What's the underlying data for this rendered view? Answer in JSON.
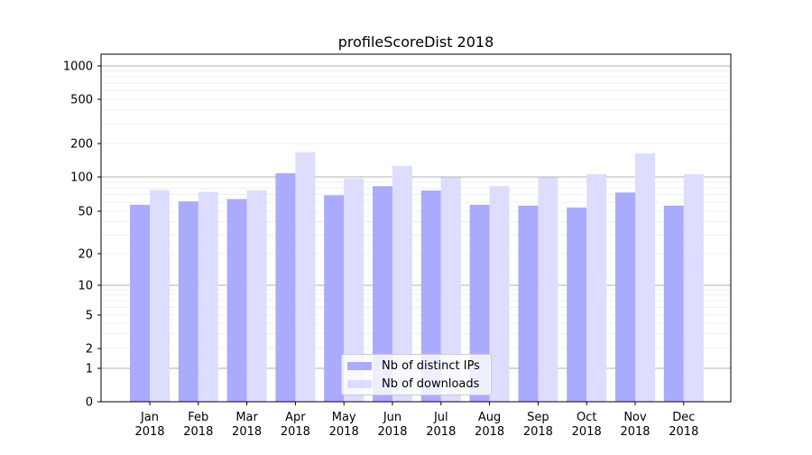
{
  "chart_data": {
    "type": "bar",
    "title": "profileScoreDist 2018",
    "xlabel": "",
    "ylabel": "",
    "yscale": "symlog",
    "ylim": [
      0,
      1300
    ],
    "yticks": [
      0,
      1,
      2,
      5,
      10,
      20,
      50,
      100,
      200,
      500,
      1000
    ],
    "ytick_labels": [
      "0",
      "1",
      "2",
      "5",
      "10",
      "20",
      "50",
      "100",
      "200",
      "500",
      "1000"
    ],
    "categories": [
      "Jan\n2018",
      "Feb\n2018",
      "Mar\n2018",
      "Apr\n2018",
      "May\n2018",
      "Jun\n2018",
      "Jul\n2018",
      "Aug\n2018",
      "Sep\n2018",
      "Oct\n2018",
      "Nov\n2018",
      "Dec\n2018"
    ],
    "category_lines": [
      [
        "Jan",
        "2018"
      ],
      [
        "Feb",
        "2018"
      ],
      [
        "Mar",
        "2018"
      ],
      [
        "Apr",
        "2018"
      ],
      [
        "May",
        "2018"
      ],
      [
        "Jun",
        "2018"
      ],
      [
        "Jul",
        "2018"
      ],
      [
        "Aug",
        "2018"
      ],
      [
        "Sep",
        "2018"
      ],
      [
        "Oct",
        "2018"
      ],
      [
        "Nov",
        "2018"
      ],
      [
        "Dec",
        "2018"
      ]
    ],
    "series": [
      {
        "name": "Nb of distinct IPs",
        "color": "#aaaaff",
        "values": [
          57,
          61,
          64,
          108,
          69,
          83,
          76,
          57,
          56,
          54,
          73,
          56
        ]
      },
      {
        "name": "Nb of downloads",
        "color": "#ddddff",
        "values": [
          77,
          74,
          76,
          167,
          97,
          126,
          99,
          83,
          99,
          106,
          163,
          106
        ]
      }
    ],
    "grid": true,
    "legend_position": "lower-center"
  }
}
